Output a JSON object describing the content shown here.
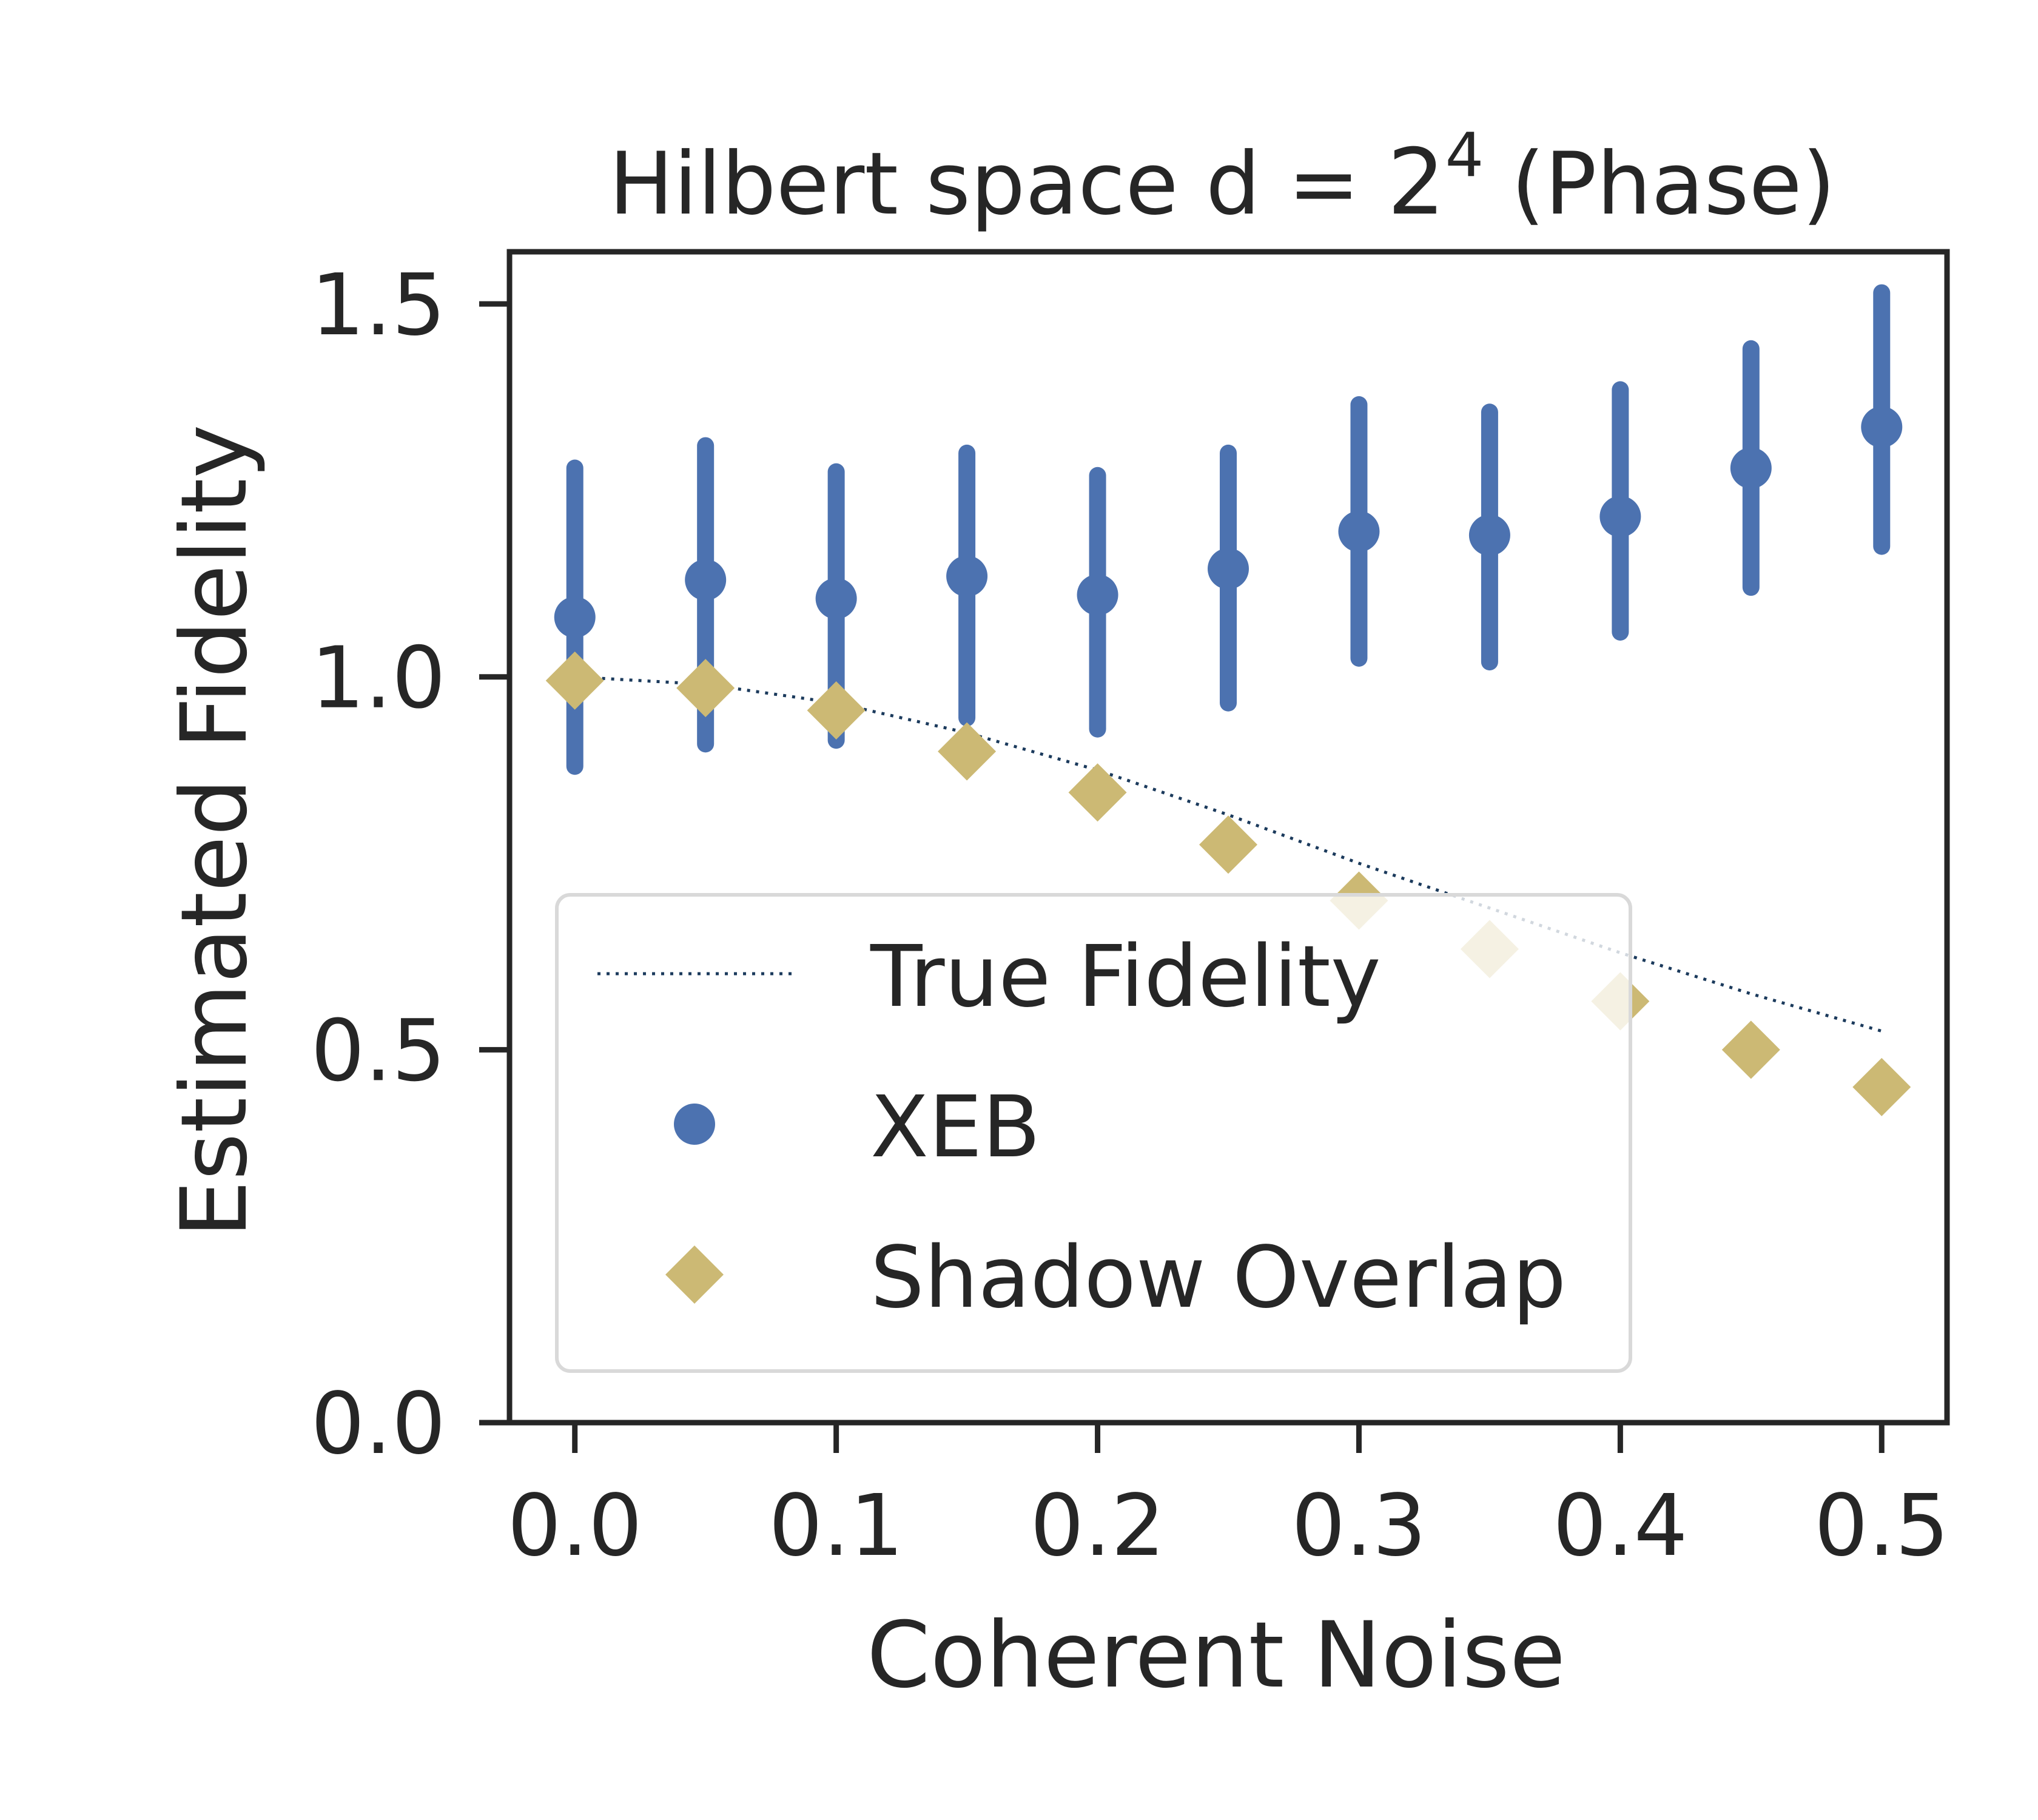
{
  "chart_data": {
    "type": "scatter",
    "title": {
      "prefix": "Hilbert space d = ",
      "base": "2",
      "exponent": "4",
      "suffix": " (Phase)"
    },
    "xlabel": "Coherent Noise",
    "ylabel": "Estimated Fidelity",
    "xlim": [
      -0.025,
      0.525
    ],
    "ylim": [
      0.0,
      1.57
    ],
    "xticks": [
      0.0,
      0.1,
      0.2,
      0.3,
      0.4,
      0.5
    ],
    "xtick_labels": [
      "0.0",
      "0.1",
      "0.2",
      "0.3",
      "0.4",
      "0.5"
    ],
    "yticks": [
      0.0,
      0.5,
      1.0,
      1.5
    ],
    "ytick_labels": [
      "0.0",
      "0.5",
      "1.0",
      "1.5"
    ],
    "grid": false,
    "legend_position": "lower-left",
    "series": [
      {
        "name": "True Fidelity",
        "kind": "line",
        "style": "dotted",
        "color": "#1b3a5c",
        "x": [
          0.0,
          0.05,
          0.1,
          0.15,
          0.2,
          0.25,
          0.3,
          0.35,
          0.4,
          0.45,
          0.5
        ],
        "y": [
          1.0,
          0.99,
          0.965,
          0.925,
          0.875,
          0.815,
          0.75,
          0.69,
          0.63,
          0.575,
          0.525
        ]
      },
      {
        "name": "XEB",
        "kind": "errorbar",
        "marker": "circle",
        "color": "#4c72b0",
        "x": [
          0.0,
          0.05,
          0.1,
          0.15,
          0.2,
          0.25,
          0.3,
          0.35,
          0.4,
          0.45,
          0.5
        ],
        "y": [
          1.08,
          1.13,
          1.105,
          1.135,
          1.11,
          1.145,
          1.195,
          1.19,
          1.215,
          1.28,
          1.335
        ],
        "y_low": [
          0.88,
          0.91,
          0.915,
          0.945,
          0.93,
          0.965,
          1.025,
          1.02,
          1.06,
          1.12,
          1.175
        ],
        "y_high": [
          1.28,
          1.31,
          1.275,
          1.3,
          1.27,
          1.3,
          1.365,
          1.355,
          1.385,
          1.44,
          1.515
        ]
      },
      {
        "name": "Shadow Overlap",
        "kind": "scatter",
        "marker": "diamond",
        "color": "#ccb974",
        "x": [
          0.0,
          0.05,
          0.1,
          0.15,
          0.2,
          0.25,
          0.3,
          0.35,
          0.4,
          0.45,
          0.5
        ],
        "y": [
          0.995,
          0.985,
          0.955,
          0.9,
          0.845,
          0.775,
          0.7,
          0.635,
          0.565,
          0.5,
          0.45
        ]
      }
    ]
  }
}
